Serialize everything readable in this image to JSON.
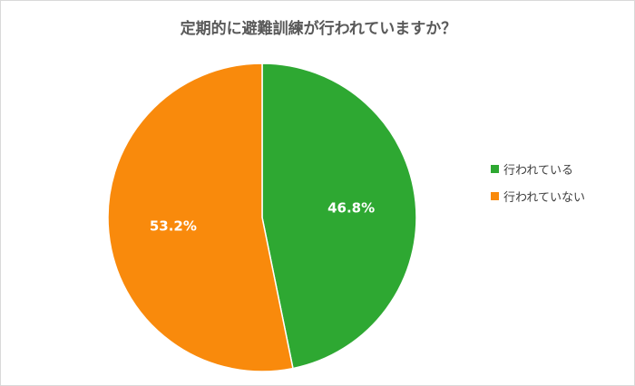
{
  "chart_data": {
    "type": "pie",
    "title": "定期的に避難訓練が行われていますか？",
    "slices": [
      {
        "label": "行われている",
        "value": 46.8,
        "value_label": "46.8%",
        "color": "#2ea832"
      },
      {
        "label": "行われていない",
        "value": 53.2,
        "value_label": "53.2%",
        "color": "#f98a0c"
      }
    ],
    "legend_position": "right",
    "start_angle": "12 o'clock",
    "direction": "clockwise"
  }
}
